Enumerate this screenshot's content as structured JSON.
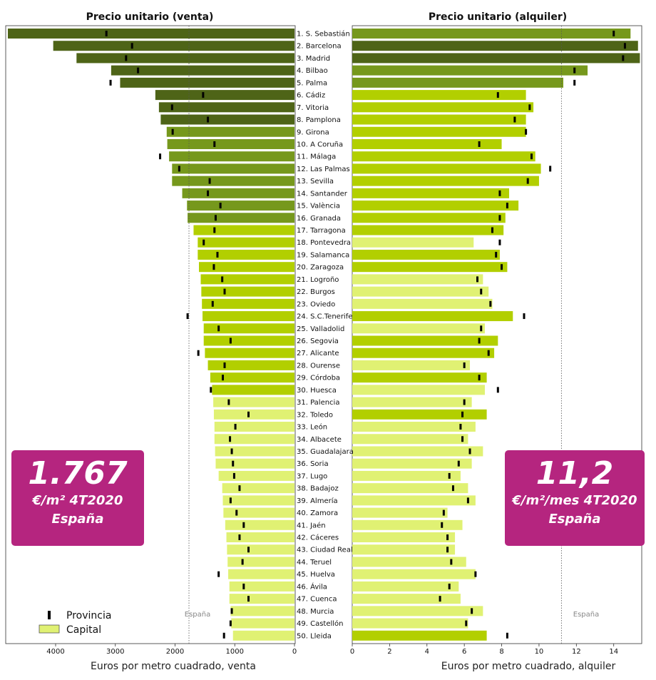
{
  "chart_data": [
    {
      "type": "bar",
      "orientation": "horizontal",
      "title": "Precio unitario (venta)",
      "xlabel": "Euros por metro cuadrado, venta",
      "xlim": [
        4800,
        0
      ],
      "xticks": [
        "4000",
        "3000",
        "2000",
        "1000",
        "0"
      ],
      "xtick_values": [
        4000,
        3000,
        2000,
        1000,
        0
      ],
      "reference_line": {
        "label": "España",
        "value": 1767
      },
      "categories": [
        "1. S. Sebastián",
        "2. Barcelona",
        "3. Madrid",
        "4. Bilbao",
        "5. Palma",
        "6. Cádiz",
        "7. Vitoria",
        "8. Pamplona",
        "9. Girona",
        "10. A Coruña",
        "11. Málaga",
        "12. Las Palmas",
        "13. Sevilla",
        "14. Santander",
        "15. València",
        "16. Granada",
        "17. Tarragona",
        "18. Pontevedra",
        "19. Salamanca",
        "20. Zaragoza",
        "21. Logroño",
        "22. Burgos",
        "23. Oviedo",
        "24. S.C.Tenerife",
        "25. Valladolid",
        "26. Segovia",
        "27. Alicante",
        "28. Ourense",
        "29. Córdoba",
        "30. Huesca",
        "31. Palencia",
        "32. Toledo",
        "33. León",
        "34. Albacete",
        "35. Guadalajara",
        "36. Soria",
        "37. Lugo",
        "38. Badajoz",
        "39. Almería",
        "40. Zamora",
        "41. Jaén",
        "42. Cáceres",
        "43. Ciudad Real",
        "44. Teruel",
        "45. Huelva",
        "46. Ávila",
        "47. Cuenca",
        "48. Murcia",
        "49. Castellón",
        "50. Lleida"
      ],
      "series": [
        {
          "name": "Capital",
          "values": [
            4800,
            4040,
            3650,
            3070,
            2920,
            2330,
            2270,
            2240,
            2140,
            2130,
            2100,
            2050,
            2050,
            1880,
            1800,
            1790,
            1690,
            1620,
            1620,
            1600,
            1570,
            1560,
            1550,
            1540,
            1520,
            1520,
            1500,
            1450,
            1410,
            1380,
            1360,
            1350,
            1340,
            1340,
            1330,
            1320,
            1270,
            1210,
            1200,
            1190,
            1160,
            1140,
            1130,
            1120,
            1110,
            1090,
            1090,
            1070,
            1060,
            1030
          ]
        },
        {
          "name": "Provincia",
          "values": [
            3150,
            2720,
            2820,
            2620,
            3080,
            1530,
            2050,
            1450,
            2040,
            1340,
            2250,
            1930,
            1420,
            1450,
            1240,
            1320,
            1340,
            1520,
            1290,
            1350,
            1210,
            1170,
            1370,
            1790,
            1270,
            1070,
            1610,
            1170,
            1200,
            1400,
            1100,
            770,
            990,
            1080,
            1050,
            1030,
            1010,
            920,
            1070,
            970,
            850,
            920,
            770,
            870,
            1270,
            850,
            770,
            1050,
            1070,
            1180
          ]
        }
      ],
      "tiers": [
        "dark",
        "dark",
        "dark",
        "dark",
        "dark",
        "dark",
        "dark",
        "dark",
        "mid",
        "mid",
        "mid",
        "mid",
        "mid",
        "mid",
        "mid",
        "mid",
        "bright",
        "bright",
        "bright",
        "bright",
        "bright",
        "bright",
        "bright",
        "bright",
        "bright",
        "bright",
        "bright",
        "bright",
        "bright",
        "bright",
        "light",
        "light",
        "light",
        "light",
        "light",
        "light",
        "light",
        "light",
        "light",
        "light",
        "light",
        "light",
        "light",
        "light",
        "light",
        "light",
        "light",
        "light",
        "light",
        "light"
      ],
      "legend": {
        "items": [
          "Provincia",
          "Capital"
        ],
        "placement": "bottom-left"
      },
      "colors": {
        "dark": "#4e6417",
        "mid": "#76981c",
        "bright": "#b2cf00",
        "light": "#e0f173"
      }
    },
    {
      "type": "bar",
      "orientation": "horizontal",
      "title": "Precio unitario (alquiler)",
      "xlabel": "Euros por metro cuadrado, alquiler",
      "xlim": [
        0,
        15.5
      ],
      "xticks": [
        "0",
        "2",
        "4",
        "6",
        "8",
        "10",
        "12",
        "14"
      ],
      "xtick_values": [
        0,
        2,
        4,
        6,
        8,
        10,
        12,
        14
      ],
      "reference_line": {
        "label": "España",
        "value": 11.2
      },
      "series": [
        {
          "name": "Capital",
          "values": [
            14.9,
            15.3,
            15.4,
            12.6,
            11.3,
            9.3,
            9.7,
            9.3,
            9.3,
            8.0,
            9.8,
            10.1,
            10.0,
            8.4,
            8.9,
            8.2,
            8.1,
            6.5,
            7.9,
            8.3,
            7.0,
            7.3,
            7.5,
            8.6,
            7.1,
            7.8,
            7.6,
            6.3,
            7.2,
            7.1,
            6.4,
            7.2,
            6.6,
            6.2,
            7.0,
            6.4,
            5.8,
            6.2,
            6.6,
            5.1,
            5.9,
            5.5,
            5.5,
            6.1,
            6.6,
            5.7,
            5.8,
            7.0,
            6.2,
            7.2
          ]
        },
        {
          "name": "Provincia",
          "values": [
            14.0,
            14.6,
            14.5,
            11.9,
            11.9,
            7.8,
            9.5,
            8.7,
            9.3,
            6.8,
            9.6,
            10.6,
            9.4,
            7.9,
            8.3,
            7.9,
            7.5,
            7.9,
            7.7,
            8.0,
            6.7,
            6.9,
            7.4,
            9.2,
            6.9,
            6.8,
            7.3,
            6.0,
            6.8,
            7.8,
            6.0,
            5.9,
            5.8,
            5.9,
            6.3,
            5.7,
            5.2,
            5.4,
            6.2,
            4.9,
            4.8,
            5.1,
            5.1,
            5.3,
            6.6,
            5.2,
            4.7,
            6.4,
            6.1,
            8.3
          ]
        }
      ],
      "tiers": [
        "mid",
        "dark",
        "dark",
        "mid",
        "mid",
        "bright",
        "bright",
        "bright",
        "bright",
        "bright",
        "bright",
        "bright",
        "bright",
        "bright",
        "bright",
        "bright",
        "bright",
        "light",
        "bright",
        "bright",
        "light",
        "light",
        "light",
        "bright",
        "light",
        "bright",
        "bright",
        "light",
        "bright",
        "light",
        "light",
        "bright",
        "light",
        "light",
        "light",
        "light",
        "light",
        "light",
        "light",
        "light",
        "light",
        "light",
        "light",
        "light",
        "light",
        "light",
        "light",
        "light",
        "light",
        "bright"
      ],
      "colors": {
        "dark": "#4e6417",
        "mid": "#76981c",
        "bright": "#b2cf00",
        "light": "#e0f173"
      }
    }
  ],
  "badges": {
    "venta": {
      "value": "1.767",
      "unit": "€/m² 4T2020",
      "region": "España"
    },
    "alquiler": {
      "value": "11,2",
      "unit": "€/m²/mes 4T2020",
      "region": "España"
    }
  }
}
